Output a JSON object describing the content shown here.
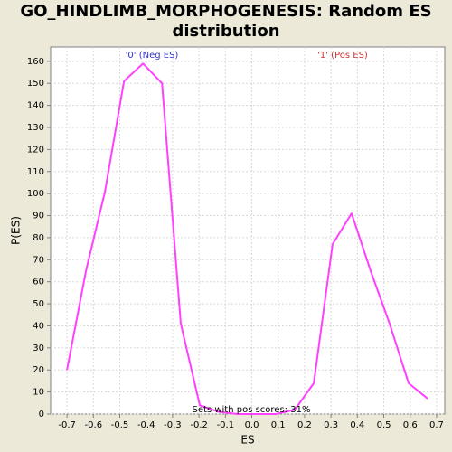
{
  "chart_data": {
    "type": "line",
    "title": "GO_HINDLIMB_MORPHOGENESIS: Random ES distribution",
    "x_label": "ES",
    "y_label": "P(ES)",
    "annotations": [
      "'0' (Neg ES)",
      "'1' (Pos ES)",
      "Sets with pos scores: 31%"
    ],
    "x": [
      -0.7,
      -0.628,
      -0.556,
      -0.484,
      -0.412,
      -0.34,
      -0.269,
      -0.197,
      -0.125,
      -0.053,
      0.019,
      0.091,
      0.163,
      0.235,
      0.306,
      0.378,
      0.45,
      0.522,
      0.594,
      0.666
    ],
    "values": [
      20,
      65,
      101,
      151,
      159,
      150,
      41,
      4,
      1,
      0,
      0,
      0,
      2,
      14,
      77,
      91,
      65,
      41,
      14,
      7
    ],
    "color": "#ff40ff",
    "xlim": [
      -0.762,
      0.731
    ],
    "ylim": [
      0,
      166.5
    ],
    "xticks": [
      -0.7,
      -0.6,
      -0.5,
      -0.4,
      -0.3,
      -0.2,
      -0.1,
      {
        "value": 0,
        "label": "0.0"
      },
      0.1,
      0.2,
      0.3,
      0.4,
      0.5,
      0.6,
      0.7
    ],
    "yticks": [
      0,
      10,
      20,
      30,
      40,
      50,
      60,
      70,
      80,
      90,
      100,
      110,
      120,
      130,
      140,
      150,
      160
    ],
    "grid": true
  }
}
